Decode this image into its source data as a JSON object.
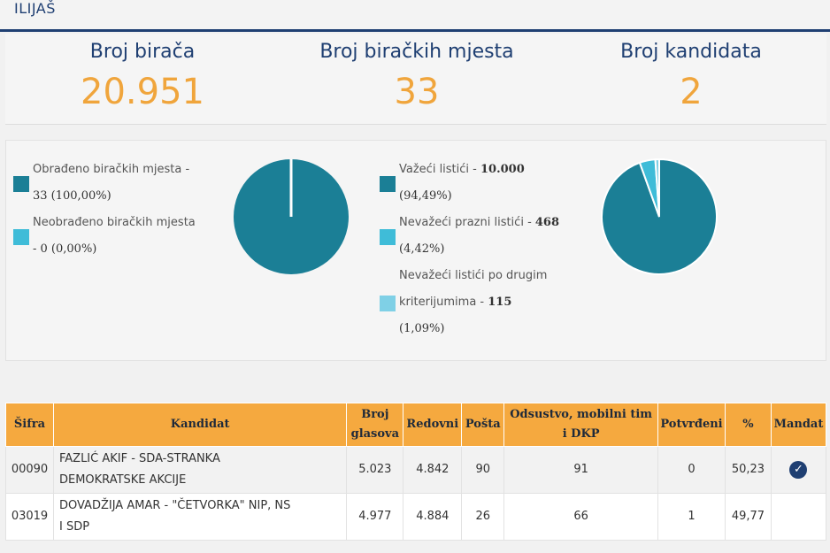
{
  "municipality": "ILIJAŠ",
  "stats": [
    {
      "label": "Broj birača",
      "value": "20.951"
    },
    {
      "label": "Broj biračkih mjesta",
      "value": "33"
    },
    {
      "label": "Broj kandidata",
      "value": "2"
    }
  ],
  "colors": {
    "dark": "#1b7f96",
    "light": "#3fbcd8",
    "lighter": "#7fd0e6",
    "orange": "#f0a53c",
    "navy": "#1f3f72"
  },
  "legend_left": {
    "item1_line1": "Obrađeno biračkih mjesta -",
    "item1_line2": "33 (100,00%)",
    "item2_line1": "Neobrađeno biračkih mjesta",
    "item2_line2": "- 0 (0,00%)"
  },
  "legend_right": {
    "item1_line1_a": "Važeći listići - ",
    "item1_line1_b": "10.000",
    "item1_line2": "(94,49%)",
    "item2_line1_a": "Nevažeći prazni listići - ",
    "item2_line1_b": "468",
    "item2_line2": "(4,42%)",
    "item3_line0": "Nevažeći listići po drugim",
    "item3_line1_a": "kriterijumima - ",
    "item3_line1_b": "115",
    "item3_line2": "(1,09%)"
  },
  "chart_data": [
    {
      "type": "pie",
      "labels": [
        "Obrađeno biračkih mjesta",
        "Neobrađeno biračkih mjesta"
      ],
      "values": [
        33,
        0
      ],
      "colors": [
        "#1b7f96",
        "#3fbcd8"
      ]
    },
    {
      "type": "pie",
      "labels": [
        "Važeći listići",
        "Nevažeći prazni listići",
        "Nevažeći listići po drugim kriterijumima"
      ],
      "values": [
        10000,
        468,
        115
      ],
      "colors": [
        "#1b7f96",
        "#3fbcd8",
        "#7fd0e6"
      ]
    }
  ],
  "table": {
    "headers": {
      "sifra": "Šifra",
      "kandidat": "Kandidat",
      "broj_1": "Broj",
      "broj_2": "glasova",
      "redovni": "Redovni",
      "posta": "Pošta",
      "odsustvo_1": "Odsustvo, mobilni tim",
      "odsustvo_2": "i DKP",
      "potvrdeni": "Potvrđeni",
      "pct": "%",
      "mandat": "Mandat"
    },
    "rows": [
      {
        "sifra": "00090",
        "kandidat_1": "FAZLIĆ AKIF - SDA-STRANKA",
        "kandidat_2": "DEMOKRATSKE AKCIJE",
        "broj": "5.023",
        "redovni": "4.842",
        "posta": "90",
        "odsustvo": "91",
        "potvrdeni": "0",
        "pct": "50,23",
        "mandat_icon": "check-circle-icon"
      },
      {
        "sifra": "03019",
        "kandidat_1": "DOVADŽIJA AMAR - \"ČETVORKA\" NIP, NS",
        "kandidat_2": "I SDP",
        "broj": "4.977",
        "redovni": "4.884",
        "posta": "26",
        "odsustvo": "66",
        "potvrdeni": "1",
        "pct": "49,77"
      }
    ]
  }
}
